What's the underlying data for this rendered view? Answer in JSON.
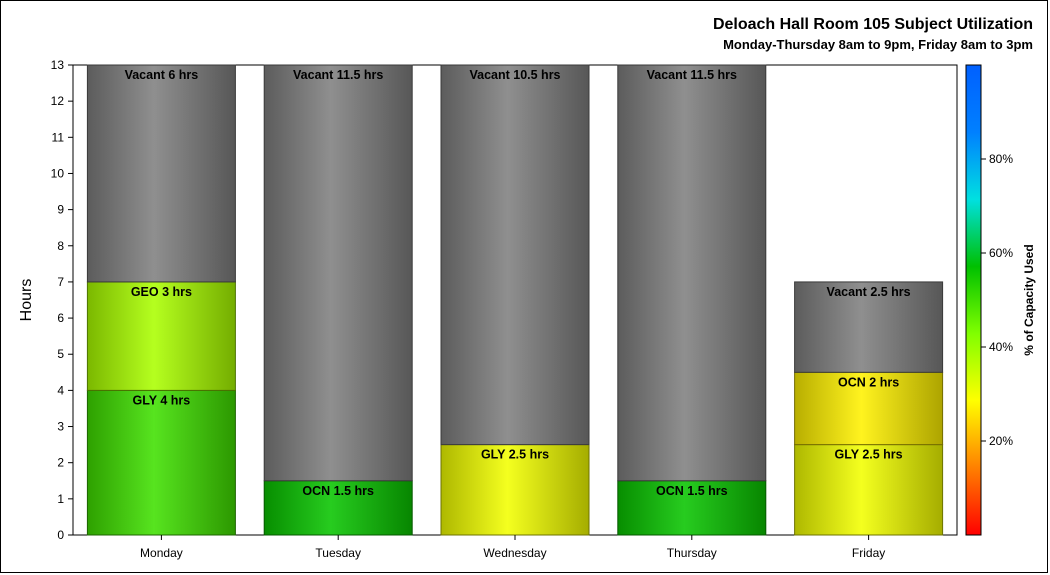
{
  "chart_data": {
    "type": "bar",
    "stacked": true,
    "title": "Deloach Hall Room 105 Subject Utilization",
    "subtitle": "Monday-Thursday 8am to 9pm, Friday 8am to 3pm",
    "ylabel": "Hours",
    "ylim": [
      0,
      13
    ],
    "yticks": [
      0,
      1,
      2,
      3,
      4,
      5,
      6,
      7,
      8,
      9,
      10,
      11,
      12,
      13
    ],
    "categories": [
      "Monday",
      "Tuesday",
      "Wednesday",
      "Thursday",
      "Friday"
    ],
    "bars": [
      {
        "category": "Monday",
        "segments": [
          {
            "subject": "GLY",
            "hours": 4,
            "capacity_pct": 50,
            "label": "GLY 4 hrs"
          },
          {
            "subject": "GEO",
            "hours": 3,
            "capacity_pct": 38,
            "label": "GEO 3 hrs"
          },
          {
            "subject": "Vacant",
            "hours": 6,
            "capacity_pct": null,
            "label": "Vacant 6 hrs"
          }
        ]
      },
      {
        "category": "Tuesday",
        "segments": [
          {
            "subject": "OCN",
            "hours": 1.5,
            "capacity_pct": 56,
            "label": "OCN 1.5 hrs"
          },
          {
            "subject": "Vacant",
            "hours": 11.5,
            "capacity_pct": null,
            "label": "Vacant 11.5 hrs"
          }
        ]
      },
      {
        "category": "Wednesday",
        "segments": [
          {
            "subject": "GLY",
            "hours": 2.5,
            "capacity_pct": 30,
            "label": "GLY 2.5 hrs"
          },
          {
            "subject": "Vacant",
            "hours": 10.5,
            "capacity_pct": null,
            "label": "Vacant 10.5 hrs"
          }
        ]
      },
      {
        "category": "Thursday",
        "segments": [
          {
            "subject": "OCN",
            "hours": 1.5,
            "capacity_pct": 56,
            "label": "OCN 1.5 hrs"
          },
          {
            "subject": "Vacant",
            "hours": 11.5,
            "capacity_pct": null,
            "label": "Vacant 11.5 hrs"
          }
        ]
      },
      {
        "category": "Friday",
        "segments": [
          {
            "subject": "GLY",
            "hours": 2.5,
            "capacity_pct": 30,
            "label": "GLY 2.5 hrs"
          },
          {
            "subject": "OCN",
            "hours": 2,
            "capacity_pct": 27,
            "label": "OCN 2 hrs"
          },
          {
            "subject": "Vacant",
            "hours": 2.5,
            "capacity_pct": null,
            "label": "Vacant 2.5 hrs"
          }
        ]
      }
    ],
    "colorbar": {
      "title": "% of Capacity Used",
      "ticks": [
        20,
        40,
        60,
        80
      ],
      "tick_labels": [
        "20%",
        "40%",
        "60%",
        "80%"
      ],
      "range": [
        0,
        100
      ],
      "colors": [
        "#ff0000",
        "#ff8000",
        "#ffff00",
        "#80ff00",
        "#00c000",
        "#00e0e0",
        "#0080ff",
        "#0060ff"
      ]
    },
    "vacant_color": "#808080",
    "grid": false,
    "legend": "right colorbar"
  }
}
